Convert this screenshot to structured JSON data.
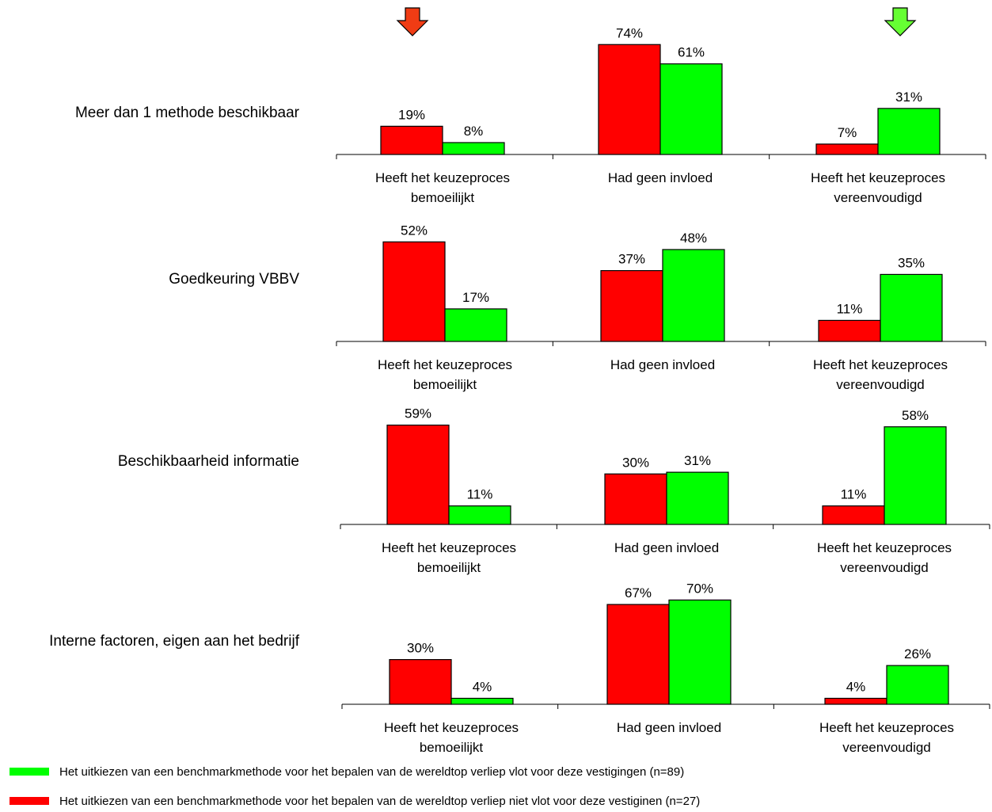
{
  "colors": {
    "red": "#ff0000",
    "green": "#00ff00",
    "red_arrow": "#f03c14",
    "green_arrow": "#66ff33",
    "axis": "#000000"
  },
  "arrows": {
    "left": "down-arrow-red-icon",
    "right": "down-arrow-green-icon"
  },
  "chart_data": [
    {
      "type": "bar",
      "title": "Meer dan 1 methode beschikbaar",
      "categories": [
        "Heeft het keuzeproces bemoeilijkt",
        "Had geen invloed",
        "Heeft het keuzeproces vereenvoudigd"
      ],
      "series": [
        {
          "color": "#ff0000",
          "values": [
            19,
            74,
            7
          ],
          "labels": [
            "19%",
            "74%",
            "7%"
          ]
        },
        {
          "color": "#00ff00",
          "values": [
            8,
            61,
            31
          ],
          "labels": [
            "8%",
            "61%",
            "31%"
          ]
        }
      ],
      "ylim": [
        0,
        80
      ]
    },
    {
      "type": "bar",
      "title": "Goedkeuring VBBV",
      "categories": [
        "Heeft het keuzeproces bemoeilijkt",
        "Had geen invloed",
        "Heeft het keuzeproces vereenvoudigd"
      ],
      "series": [
        {
          "color": "#ff0000",
          "values": [
            52,
            37,
            11
          ],
          "labels": [
            "52%",
            "37%",
            "11%"
          ]
        },
        {
          "color": "#00ff00",
          "values": [
            17,
            48,
            35
          ],
          "labels": [
            "17%",
            "48%",
            "35%"
          ]
        }
      ],
      "ylim": [
        0,
        60
      ]
    },
    {
      "type": "bar",
      "title": "Beschikbaarheid informatie",
      "categories": [
        "Heeft het keuzeproces bemoeilijkt",
        "Had geen invloed",
        "Heeft het keuzeproces vereenvoudigd"
      ],
      "series": [
        {
          "color": "#ff0000",
          "values": [
            59,
            30,
            11
          ],
          "labels": [
            "59%",
            "30%",
            "11%"
          ]
        },
        {
          "color": "#00ff00",
          "values": [
            11,
            31,
            58
          ],
          "labels": [
            "11%",
            "31%",
            "58%"
          ]
        }
      ],
      "ylim": [
        0,
        64
      ]
    },
    {
      "type": "bar",
      "title": "Interne factoren, eigen aan het bedrijf",
      "categories": [
        "Heeft het keuzeproces bemoeilijkt",
        "Had geen invloed",
        "Heeft het keuzeproces vereenvoudigd"
      ],
      "series": [
        {
          "color": "#ff0000",
          "values": [
            30,
            67,
            4
          ],
          "labels": [
            "30%",
            "67%",
            "4%"
          ]
        },
        {
          "color": "#00ff00",
          "values": [
            4,
            70,
            26
          ],
          "labels": [
            "4%",
            "70%",
            "26%"
          ]
        }
      ],
      "ylim": [
        0,
        75
      ]
    }
  ],
  "legend": [
    {
      "color": "#00ff00",
      "text": "Het uitkiezen van een benchmarkmethode voor het bepalen van de wereldtop verliep vlot voor deze vestigingen (n=89)"
    },
    {
      "color": "#ff0000",
      "text": "Het uitkiezen van een benchmarkmethode voor het bepalen van de wereldtop verliep  niet vlot voor deze vestiginen (n=27)"
    }
  ]
}
